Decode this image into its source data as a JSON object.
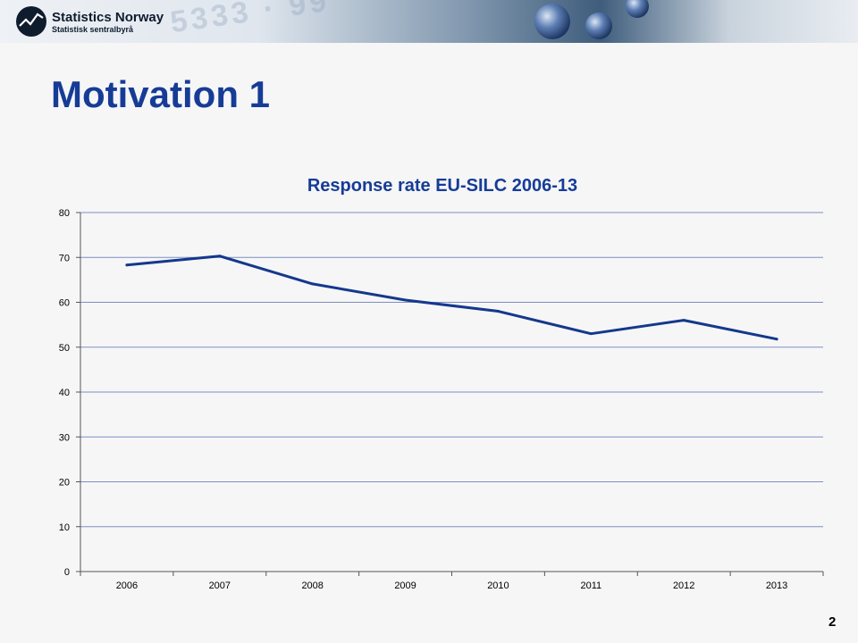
{
  "header": {
    "logo_title": "Statistics Norway",
    "logo_subtitle": "Statistisk sentralbyrå"
  },
  "slide": {
    "title": "Motivation 1",
    "page_number": "2"
  },
  "colors": {
    "title_blue": "#163c96",
    "line": "#14388c",
    "grid": "#7f8fc2"
  },
  "chart_data": {
    "type": "line",
    "title": "Response rate EU-SILC 2006-13",
    "xlabel": "",
    "ylabel": "",
    "categories": [
      "2006",
      "2007",
      "2008",
      "2009",
      "2010",
      "2011",
      "2012",
      "2013"
    ],
    "series": [
      {
        "values": [
          68.3,
          70.3,
          64.1,
          60.5,
          58.0,
          53.0,
          56.0,
          51.8
        ]
      }
    ],
    "ylim": [
      0,
      80
    ],
    "yticks": [
      0,
      10,
      20,
      30,
      40,
      50,
      60,
      70,
      80
    ],
    "grid": true,
    "legend": "none"
  }
}
